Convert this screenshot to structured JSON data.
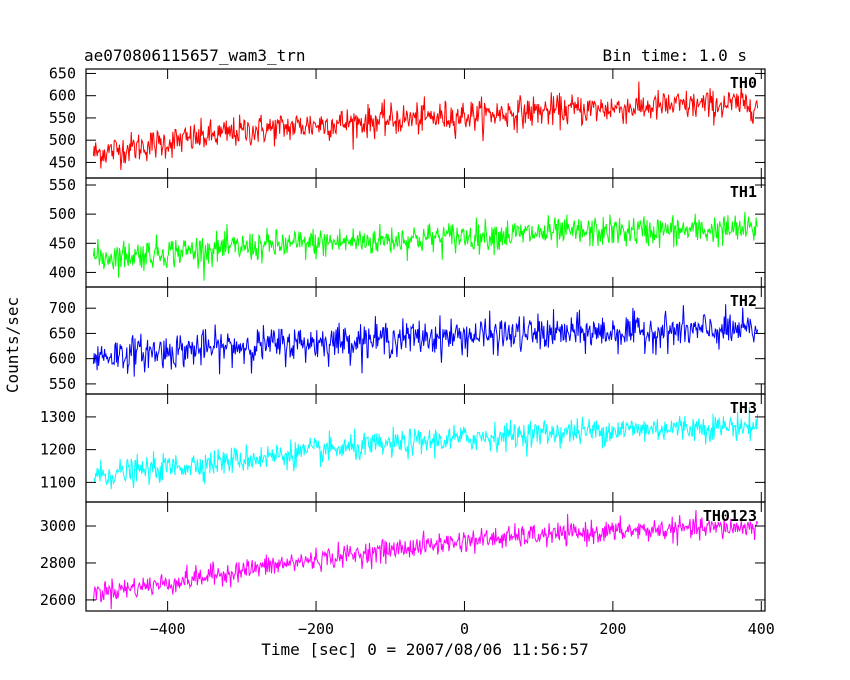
{
  "chart_data": {
    "type": "line",
    "title": "ae070806115657_wam3_trn",
    "bin_time_label": "Bin time: 1.0 s",
    "xlabel": "Time [sec] 0 = 2007/08/06 11:56:57",
    "ylabel": "Counts/sec",
    "xlim": [
      -510,
      405
    ],
    "x_ticks": [
      -400,
      -200,
      0,
      200,
      400
    ],
    "x_tick_labels": [
      "−400",
      "−200",
      "0",
      "200",
      "400"
    ],
    "sample_step_sec": 1,
    "series": [
      {
        "name": "TH0",
        "color": "#ff0000",
        "ylim": [
          415,
          660
        ],
        "y_ticks": [
          450,
          500,
          550,
          600,
          650
        ],
        "x": [
          -500,
          -400,
          -300,
          -200,
          -100,
          0,
          100,
          200,
          300,
          395
        ],
        "mean": [
          470,
          495,
          520,
          535,
          545,
          555,
          565,
          572,
          578,
          582
        ],
        "noise": 32
      },
      {
        "name": "TH1",
        "color": "#00ff00",
        "ylim": [
          375,
          562
        ],
        "y_ticks": [
          400,
          450,
          500,
          550
        ],
        "x": [
          -500,
          -400,
          -300,
          -200,
          -100,
          0,
          100,
          200,
          300,
          395
        ],
        "mean": [
          425,
          435,
          443,
          450,
          456,
          462,
          467,
          470,
          472,
          474
        ],
        "noise": 24
      },
      {
        "name": "TH2",
        "color": "#0000ff",
        "ylim": [
          530,
          742
        ],
        "y_ticks": [
          550,
          600,
          650,
          700
        ],
        "x": [
          -500,
          -400,
          -300,
          -200,
          -100,
          0,
          100,
          200,
          300,
          395
        ],
        "mean": [
          605,
          615,
          625,
          632,
          640,
          645,
          650,
          652,
          655,
          656
        ],
        "noise": 32
      },
      {
        "name": "TH3",
        "color": "#00ffff",
        "ylim": [
          1040,
          1370
        ],
        "y_ticks": [
          1100,
          1200,
          1300
        ],
        "x": [
          -500,
          -400,
          -300,
          -200,
          -100,
          0,
          100,
          200,
          300,
          395
        ],
        "mean": [
          1120,
          1145,
          1170,
          1195,
          1215,
          1235,
          1250,
          1260,
          1268,
          1272
        ],
        "noise": 38
      },
      {
        "name": "TH0123",
        "color": "#ff00ff",
        "ylim": [
          2540,
          3130
        ],
        "y_ticks": [
          2600,
          2800,
          3000
        ],
        "x": [
          -500,
          -400,
          -300,
          -200,
          -100,
          0,
          100,
          200,
          300,
          395
        ],
        "mean": [
          2640,
          2690,
          2760,
          2820,
          2870,
          2920,
          2950,
          2970,
          2985,
          2995
        ],
        "noise": 55
      }
    ]
  }
}
